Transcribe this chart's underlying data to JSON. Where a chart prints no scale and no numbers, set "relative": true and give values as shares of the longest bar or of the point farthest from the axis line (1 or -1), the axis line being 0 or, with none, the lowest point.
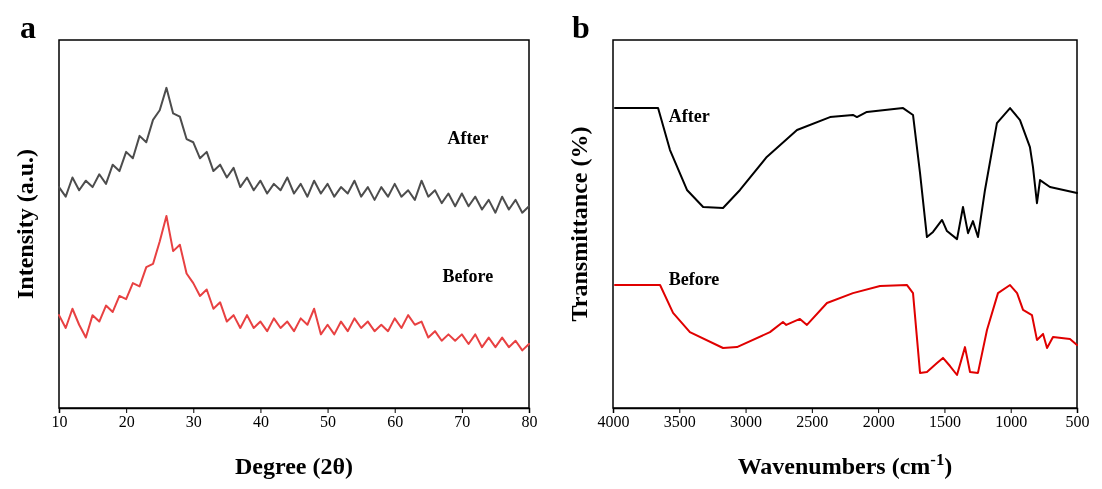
{
  "chart_data": [
    {
      "type": "line",
      "title": "a",
      "xlabel": "Degree (2θ)",
      "ylabel": "Intensity (a.u.)",
      "relative": true,
      "tick_labels": "x",
      "xlim": [
        10,
        80
      ],
      "xticks": [
        10,
        20,
        30,
        40,
        50,
        60,
        70,
        80
      ],
      "x": [
        10,
        11,
        12,
        13,
        14,
        15,
        16,
        17,
        18,
        19,
        20,
        21,
        22,
        23,
        24,
        25,
        26,
        27,
        28,
        29,
        30,
        31,
        32,
        33,
        34,
        35,
        36,
        37,
        38,
        39,
        40,
        41,
        42,
        43,
        44,
        45,
        46,
        47,
        48,
        49,
        50,
        51,
        52,
        53,
        54,
        55,
        56,
        57,
        58,
        59,
        60,
        61,
        62,
        63,
        64,
        65,
        66,
        67,
        68,
        69,
        70,
        71,
        72,
        73,
        74,
        75,
        76,
        77,
        78,
        79,
        80
      ],
      "series": [
        {
          "name": "After",
          "color": "#4d4d4d",
          "values": [
            0.69,
            0.66,
            0.72,
            0.68,
            0.71,
            0.69,
            0.73,
            0.7,
            0.76,
            0.74,
            0.8,
            0.78,
            0.85,
            0.83,
            0.9,
            0.93,
            1.0,
            0.92,
            0.91,
            0.84,
            0.83,
            0.78,
            0.8,
            0.74,
            0.76,
            0.72,
            0.75,
            0.69,
            0.72,
            0.68,
            0.71,
            0.67,
            0.7,
            0.68,
            0.72,
            0.67,
            0.7,
            0.66,
            0.71,
            0.67,
            0.7,
            0.66,
            0.69,
            0.67,
            0.71,
            0.66,
            0.69,
            0.65,
            0.69,
            0.66,
            0.7,
            0.66,
            0.68,
            0.65,
            0.71,
            0.66,
            0.68,
            0.64,
            0.67,
            0.63,
            0.67,
            0.63,
            0.66,
            0.62,
            0.65,
            0.61,
            0.66,
            0.62,
            0.65,
            0.61,
            0.63
          ]
        },
        {
          "name": "Before",
          "color": "#e84142",
          "values": [
            0.29,
            0.25,
            0.31,
            0.26,
            0.22,
            0.29,
            0.27,
            0.32,
            0.3,
            0.35,
            0.34,
            0.39,
            0.38,
            0.44,
            0.45,
            0.52,
            0.6,
            0.49,
            0.51,
            0.42,
            0.39,
            0.35,
            0.37,
            0.31,
            0.33,
            0.27,
            0.29,
            0.25,
            0.29,
            0.25,
            0.27,
            0.24,
            0.28,
            0.25,
            0.27,
            0.24,
            0.28,
            0.26,
            0.31,
            0.23,
            0.26,
            0.23,
            0.27,
            0.24,
            0.28,
            0.25,
            0.27,
            0.24,
            0.26,
            0.24,
            0.28,
            0.25,
            0.29,
            0.26,
            0.27,
            0.22,
            0.24,
            0.21,
            0.23,
            0.21,
            0.23,
            0.2,
            0.23,
            0.19,
            0.22,
            0.19,
            0.22,
            0.19,
            0.21,
            0.18,
            0.2
          ]
        }
      ]
    },
    {
      "type": "line",
      "title": "b",
      "xlabel": "Wavenumbers (cm$^{-1}$)",
      "ylabel": "Transmittance (%)",
      "relative": true,
      "tick_labels": "x",
      "xlim": [
        4000,
        500
      ],
      "xticks": [
        4000,
        3500,
        3000,
        2500,
        2000,
        1500,
        1000,
        500
      ],
      "series": [
        {
          "name": "After",
          "color": "#000000",
          "x": [
            3985,
            3660,
            3570,
            3442,
            3320,
            3170,
            3042,
            2840,
            2612,
            2363,
            2190,
            2160,
            2085,
            1812,
            1737,
            1684,
            1632,
            1586,
            1518,
            1481,
            1405,
            1360,
            1322,
            1285,
            1247,
            1194,
            1104,
            1005,
            930,
            855,
            832,
            802,
            779,
            704,
            500
          ],
          "values": [
            1.0,
            1.0,
            0.86,
            0.727,
            0.67,
            0.667,
            0.727,
            0.837,
            0.927,
            0.97,
            0.977,
            0.97,
            0.987,
            1.0,
            0.977,
            0.783,
            0.57,
            0.587,
            0.627,
            0.59,
            0.563,
            0.67,
            0.583,
            0.623,
            0.57,
            0.727,
            0.95,
            1.0,
            0.96,
            0.87,
            0.803,
            0.683,
            0.76,
            0.737,
            0.717
          ]
        },
        {
          "name": "Before",
          "color": "#e00000",
          "x": [
            3985,
            3645,
            3547,
            3420,
            3170,
            3065,
            2816,
            2718,
            2693,
            2590,
            2537,
            2386,
            2190,
            1986,
            1782,
            1737,
            1684,
            1632,
            1556,
            1511,
            1458,
            1405,
            1345,
            1307,
            1247,
            1179,
            1096,
            1005,
            952,
            907,
            840,
            802,
            756,
            726,
            681,
            553,
            500
          ],
          "values": [
            0.41,
            0.41,
            0.317,
            0.253,
            0.2,
            0.203,
            0.253,
            0.287,
            0.277,
            0.297,
            0.277,
            0.35,
            0.383,
            0.407,
            0.41,
            0.383,
            0.117,
            0.12,
            0.15,
            0.167,
            0.14,
            0.11,
            0.203,
            0.12,
            0.117,
            0.26,
            0.383,
            0.41,
            0.383,
            0.327,
            0.31,
            0.227,
            0.247,
            0.2,
            0.237,
            0.23,
            0.21
          ]
        }
      ]
    }
  ]
}
